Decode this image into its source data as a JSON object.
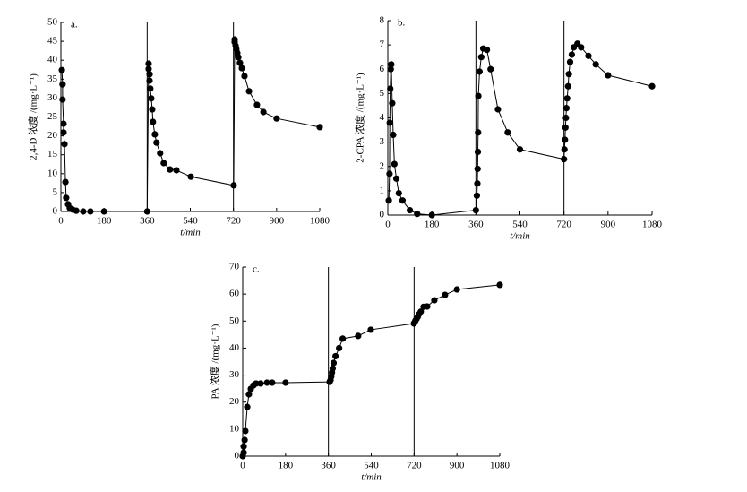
{
  "chart_data": [
    {
      "type": "line",
      "title": "a.",
      "xlabel": "t/min",
      "ylabel": "2,4-D 浓度 /(mg·L⁻¹)",
      "xlim": [
        0,
        1080
      ],
      "xticks": [
        0,
        180,
        360,
        540,
        720,
        900,
        1080
      ],
      "ylim": [
        0,
        50
      ],
      "yticks": [
        0,
        5,
        10,
        15,
        20,
        25,
        30,
        35,
        40,
        45,
        50
      ],
      "vlines": [
        360,
        720
      ],
      "x": [
        4,
        7,
        7,
        11,
        11,
        15,
        19,
        22,
        30,
        37,
        49,
        64,
        93,
        123,
        180,
        360,
        366,
        366,
        370,
        370,
        373,
        377,
        381,
        384,
        392,
        399,
        414,
        429,
        455,
        482,
        542,
        721,
        725,
        725,
        729,
        732,
        736,
        740,
        747,
        755,
        766,
        785,
        818,
        845,
        900,
        1080
      ],
      "series": [
        {
          "name": "2,4-D",
          "color": "#000000",
          "values": [
            37.4,
            33.6,
            29.6,
            23.2,
            20.9,
            17.8,
            7.8,
            3.6,
            1.9,
            0.9,
            0.5,
            0.2,
            0,
            0,
            0,
            0,
            39.1,
            37.7,
            36.3,
            34.6,
            32.5,
            29.9,
            27.0,
            23.7,
            20.4,
            18.2,
            15.4,
            12.8,
            11.1,
            10.9,
            9.2,
            6.9,
            45.5,
            44.8,
            43.8,
            42.9,
            41.9,
            40.8,
            39.3,
            37.9,
            35.8,
            31.8,
            28.2,
            26.3,
            24.6,
            22.3
          ]
        }
      ]
    },
    {
      "type": "line",
      "title": "b.",
      "xlabel": "t/min",
      "ylabel": "2-CPA 浓度 /(mg·L⁻¹)",
      "xlim": [
        0,
        1080
      ],
      "xticks": [
        0,
        180,
        360,
        540,
        720,
        900,
        1080
      ],
      "ylim": [
        0,
        8
      ],
      "yticks": [
        0,
        1,
        2,
        3,
        4,
        5,
        6,
        7,
        8
      ],
      "vlines": [
        360,
        720
      ],
      "x": [
        4,
        7,
        8,
        10,
        12,
        14,
        18,
        22,
        27,
        35,
        45,
        60,
        90,
        120,
        180,
        360,
        364,
        366,
        367,
        368,
        369,
        370,
        375,
        382,
        390,
        405,
        420,
        450,
        490,
        540,
        720,
        722,
        724,
        726,
        728,
        730,
        733,
        737,
        740,
        745,
        752,
        760,
        775,
        790,
        820,
        850,
        900,
        1080
      ],
      "series": [
        {
          "name": "2-CPA",
          "color": "#000000",
          "values": [
            0.6,
            1.7,
            3.8,
            5.2,
            6.0,
            6.2,
            4.6,
            3.3,
            2.1,
            1.5,
            0.9,
            0.6,
            0.2,
            0.05,
            0,
            0.2,
            0.8,
            1.3,
            1.9,
            2.6,
            3.4,
            4.9,
            5.9,
            6.5,
            6.85,
            6.8,
            6.0,
            4.35,
            3.4,
            2.7,
            2.3,
            2.7,
            3.1,
            3.6,
            4.0,
            4.4,
            4.8,
            5.3,
            5.8,
            6.3,
            6.6,
            6.9,
            7.05,
            6.9,
            6.55,
            6.2,
            5.75,
            5.3
          ]
        }
      ]
    },
    {
      "type": "line",
      "title": "c.",
      "xlabel": "t/min",
      "ylabel": "PA 浓度 /(mg·L⁻¹)",
      "xlim": [
        0,
        1080
      ],
      "xticks": [
        0,
        180,
        360,
        540,
        720,
        900,
        1080
      ],
      "ylim": [
        0,
        70
      ],
      "yticks": [
        0,
        10,
        20,
        30,
        40,
        50,
        60,
        70
      ],
      "vlines": [
        360,
        720
      ],
      "x": [
        0,
        4,
        4,
        8,
        11,
        19,
        26,
        34,
        45,
        56,
        75,
        102,
        124,
        180,
        365,
        369,
        372,
        375,
        378,
        382,
        390,
        405,
        420,
        485,
        538,
        719,
        722,
        726,
        730,
        735,
        740,
        748,
        760,
        775,
        805,
        850,
        900,
        1080
      ],
      "series": [
        {
          "name": "PA",
          "color": "#000000",
          "values": [
            0,
            1.3,
            3.6,
            6,
            9.3,
            18.2,
            22.9,
            24.9,
            26.2,
            26.9,
            26.9,
            27.2,
            27.2,
            27.2,
            27.5,
            28.2,
            29.5,
            31,
            32.5,
            34.5,
            37,
            40,
            43.5,
            44.5,
            46.8,
            49.1,
            49.5,
            50.2,
            50.8,
            51.5,
            52.5,
            53.5,
            55.3,
            55.4,
            57.7,
            59.7,
            61.7,
            63.4
          ]
        }
      ]
    }
  ]
}
